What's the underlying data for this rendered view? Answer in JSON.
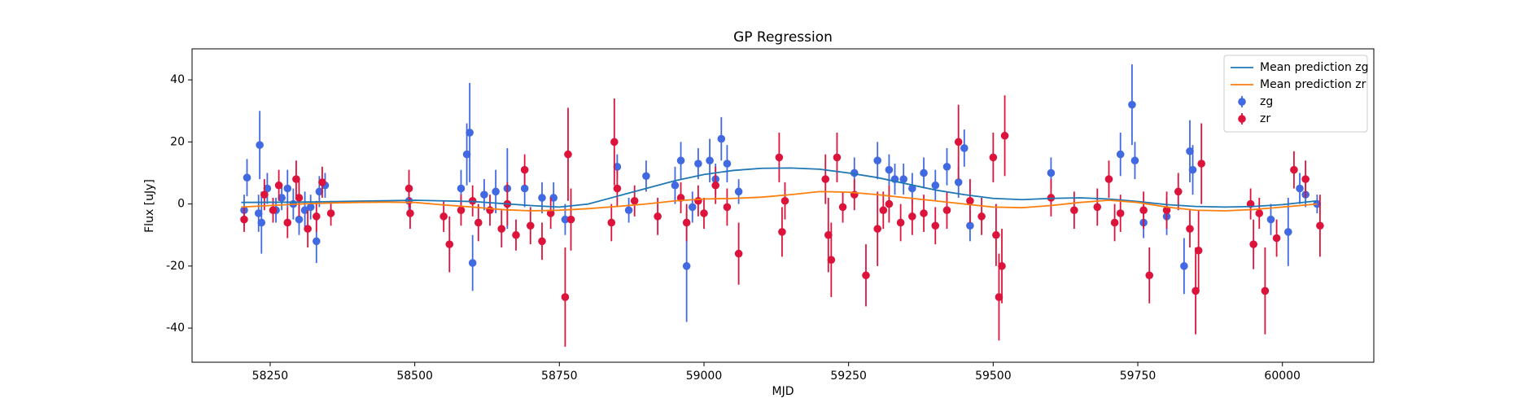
{
  "chart_data": {
    "type": "errorbar",
    "title": "GP Regression",
    "xlabel": "MJD",
    "ylabel": "Flux [uJy]",
    "xlim": [
      58115,
      60158
    ],
    "xticks": [
      58250,
      58500,
      58750,
      59000,
      59250,
      59500,
      59750,
      60000
    ],
    "ylim": [
      -51,
      50
    ],
    "yticks": [
      -40,
      -20,
      0,
      20,
      40
    ],
    "legend": "upper right",
    "series": [
      {
        "name": "Mean prediction zg",
        "style": "line",
        "color": "#1f77b4",
        "x": [
          58200,
          58300,
          58400,
          58500,
          58600,
          58700,
          58750,
          58800,
          58850,
          58900,
          58950,
          59000,
          59050,
          59100,
          59150,
          59200,
          59250,
          59300,
          59350,
          59400,
          59450,
          59500,
          59550,
          59600,
          59650,
          59700,
          59750,
          59800,
          59850,
          59900,
          59950,
          60000,
          60060
        ],
        "values": [
          0.5,
          0.6,
          0.9,
          1.2,
          0.8,
          -0.5,
          -1,
          0,
          2.5,
          5,
          7.5,
          9.5,
          10.8,
          11.5,
          11.6,
          11.2,
          10,
          8.5,
          6.5,
          4.5,
          3,
          1.8,
          1.4,
          1.8,
          2,
          1.6,
          0.8,
          -0.2,
          -0.8,
          -1,
          -0.8,
          -0.2,
          1
        ]
      },
      {
        "name": "Mean prediction zr",
        "style": "line",
        "color": "#ff7f0e",
        "x": [
          58200,
          58250,
          58300,
          58350,
          58400,
          58450,
          58500,
          58550,
          58600,
          58650,
          58700,
          58750,
          58800,
          58850,
          58900,
          58950,
          59000,
          59050,
          59100,
          59150,
          59200,
          59250,
          59300,
          59350,
          59400,
          59450,
          59500,
          59550,
          59600,
          59650,
          59700,
          59750,
          59800,
          59850,
          59900,
          59950,
          60000,
          60060
        ],
        "values": [
          -1,
          -0.5,
          0,
          0.3,
          0.5,
          0.6,
          0.5,
          -0.3,
          -1,
          -1.8,
          -2.2,
          -2,
          -1.5,
          -0.8,
          0,
          1,
          1.6,
          1.8,
          2.2,
          3,
          4,
          3.8,
          3,
          2,
          1,
          0,
          -1,
          -1.2,
          -0.5,
          0.5,
          1.2,
          0.5,
          -1,
          -2,
          -2.2,
          -1.8,
          -1,
          0
        ]
      },
      {
        "name": "zg",
        "style": "errorbar",
        "color": "#4169e1",
        "x": [
          58205,
          58210,
          58230,
          58232,
          58235,
          58245,
          58260,
          58270,
          58280,
          58290,
          58300,
          58310,
          58320,
          58330,
          58335,
          58345,
          58490,
          58580,
          58590,
          58595,
          58600,
          58620,
          58640,
          58660,
          58690,
          58720,
          58740,
          58760,
          58850,
          58870,
          58900,
          58950,
          58960,
          58970,
          58980,
          58990,
          59010,
          59020,
          59030,
          59040,
          59060,
          59260,
          59300,
          59320,
          59330,
          59345,
          59360,
          59380,
          59400,
          59420,
          59440,
          59450,
          59460,
          59600,
          59720,
          59740,
          59745,
          59760,
          59800,
          59830,
          59840,
          59845,
          59980,
          60010,
          60030,
          60040,
          60060
        ],
        "values": [
          -2,
          8.5,
          -3,
          19,
          -6,
          5,
          -2,
          2,
          5,
          0,
          -5,
          -2,
          -1,
          -12,
          4,
          6,
          1,
          5,
          16,
          23,
          -19,
          3,
          4,
          5,
          5,
          2,
          2,
          -5,
          12,
          -2,
          9,
          6,
          14,
          -20,
          -1,
          13,
          14,
          8,
          21,
          13,
          4,
          10,
          14,
          11,
          8,
          8,
          5,
          10,
          6,
          12,
          7,
          18,
          -7,
          10,
          16,
          32,
          14,
          -6,
          -4,
          -20,
          17,
          11,
          -5,
          -9,
          5,
          3,
          0
        ],
        "errors": [
          5,
          6,
          6,
          11,
          10,
          5,
          4,
          4,
          6,
          5,
          5,
          6,
          4,
          7,
          5,
          4,
          4,
          6,
          10,
          16,
          9,
          5,
          7,
          13,
          6,
          5,
          5,
          5,
          4,
          4,
          5,
          6,
          6,
          18,
          5,
          5,
          7,
          5,
          7,
          6,
          4,
          5,
          6,
          5,
          5,
          5,
          5,
          5,
          5,
          6,
          5,
          6,
          5,
          5,
          7,
          13,
          6,
          5,
          6,
          9,
          10,
          8,
          5,
          11,
          5,
          4,
          3
        ]
      },
      {
        "name": "zr",
        "style": "errorbar",
        "color": "#dc143c",
        "x": [
          58205,
          58240,
          58255,
          58265,
          58280,
          58295,
          58300,
          58315,
          58330,
          58340,
          58355,
          58490,
          58492,
          58550,
          58560,
          58580,
          58600,
          58610,
          58630,
          58650,
          58660,
          58675,
          58690,
          58700,
          58720,
          58735,
          58760,
          58765,
          58770,
          58840,
          58845,
          58850,
          58880,
          58920,
          58960,
          58970,
          58990,
          59000,
          59020,
          59040,
          59060,
          59130,
          59135,
          59140,
          59210,
          59215,
          59220,
          59230,
          59240,
          59260,
          59280,
          59300,
          59310,
          59320,
          59340,
          59360,
          59380,
          59400,
          59420,
          59440,
          59460,
          59480,
          59500,
          59505,
          59510,
          59515,
          59520,
          59600,
          59640,
          59680,
          59700,
          59710,
          59720,
          59760,
          59770,
          59800,
          59820,
          59840,
          59850,
          59855,
          59860,
          59945,
          59950,
          59960,
          59970,
          59990,
          60020,
          60040,
          60065
        ],
        "values": [
          -5,
          3,
          -2,
          6,
          -6,
          8,
          2,
          -8,
          -4,
          7,
          -3,
          5,
          -3,
          -4,
          -13,
          -2,
          1,
          -6,
          -2,
          -8,
          0,
          -10,
          11,
          -7,
          -12,
          -3,
          -30,
          16,
          -5,
          -6,
          20,
          5,
          1,
          -4,
          2,
          -6,
          1,
          -3,
          6,
          -1,
          -16,
          15,
          -9,
          1,
          8,
          -10,
          -18,
          15,
          -1,
          3,
          -23,
          -8,
          -2,
          0,
          -6,
          -4,
          -3,
          -7,
          -2,
          20,
          1,
          -4,
          15,
          -10,
          -30,
          -20,
          22,
          2,
          -2,
          -1,
          8,
          -6,
          -3,
          -2,
          -23,
          -2,
          4,
          -8,
          -28,
          -15,
          13,
          0,
          -13,
          -3,
          -28,
          -11,
          11,
          8,
          -7
        ],
        "errors": [
          4,
          5,
          4,
          5,
          5,
          6,
          6,
          6,
          5,
          5,
          4,
          6,
          5,
          5,
          9,
          5,
          5,
          6,
          5,
          6,
          7,
          5,
          5,
          6,
          6,
          5,
          16,
          15,
          10,
          6,
          14,
          6,
          5,
          6,
          5,
          6,
          5,
          5,
          6,
          6,
          10,
          8,
          8,
          6,
          8,
          12,
          12,
          8,
          5,
          5,
          10,
          12,
          6,
          6,
          6,
          6,
          6,
          6,
          6,
          12,
          7,
          6,
          8,
          10,
          14,
          12,
          13,
          6,
          6,
          6,
          6,
          6,
          6,
          6,
          9,
          6,
          6,
          6,
          14,
          13,
          13,
          5,
          8,
          5,
          14,
          6,
          6,
          6,
          10
        ]
      }
    ]
  }
}
